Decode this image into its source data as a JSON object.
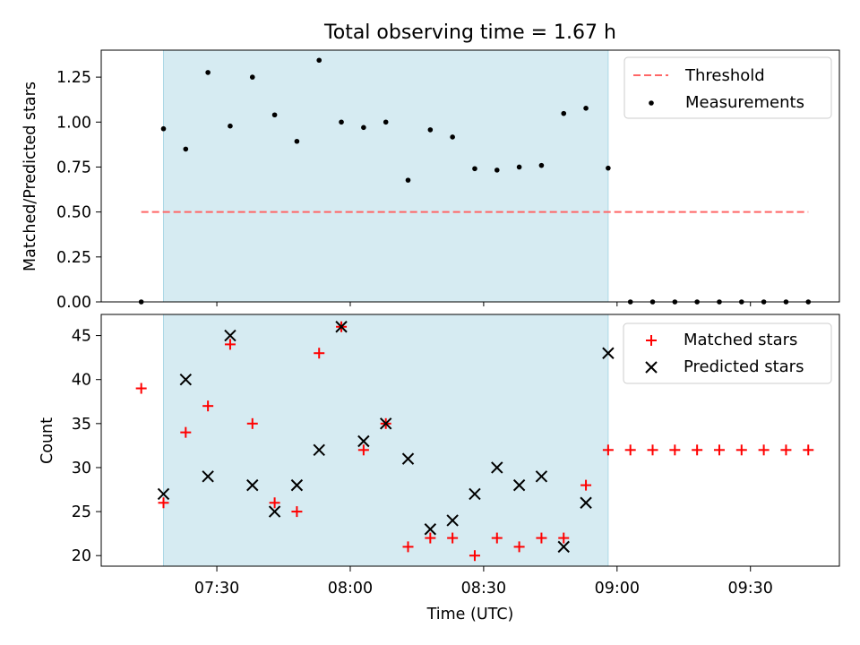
{
  "chart_data": {
    "title": "Total observing time = 1.67 h",
    "xlabel": "Time (UTC)",
    "xlim": [
      "07:04",
      "09:50"
    ],
    "x_ticks": [
      "07:30",
      "08:00",
      "08:30",
      "09:00",
      "09:30"
    ],
    "shaded_interval": [
      "07:18",
      "08:58"
    ],
    "shaded_color": "#add8e6",
    "top": {
      "type": "scatter",
      "ylabel": "Matched/Predicted stars",
      "ylim": [
        0,
        1.4
      ],
      "y_ticks": [
        "0.00",
        "0.25",
        "0.50",
        "0.75",
        "1.00",
        "1.25"
      ],
      "legend_position": "top-right",
      "threshold": {
        "name": "Threshold",
        "value": 0.5,
        "x_range": [
          "07:13",
          "09:43"
        ],
        "color": "#ff6666",
        "style": "dashed"
      },
      "series": [
        {
          "name": "Measurements",
          "color": "#000000",
          "marker": "dot",
          "x": [
            "07:13",
            "07:18",
            "07:23",
            "07:28",
            "07:33",
            "07:38",
            "07:43",
            "07:48",
            "07:53",
            "07:58",
            "08:03",
            "08:08",
            "08:13",
            "08:18",
            "08:23",
            "08:28",
            "08:33",
            "08:38",
            "08:43",
            "08:48",
            "08:53",
            "08:58",
            "09:03",
            "09:08",
            "09:13",
            "09:18",
            "09:23",
            "09:28",
            "09:33",
            "09:38",
            "09:43"
          ],
          "y": [
            0.0,
            0.963,
            0.85,
            1.276,
            0.978,
            1.25,
            1.04,
            0.893,
            1.344,
            1.0,
            0.97,
            1.0,
            0.677,
            0.957,
            0.917,
            0.741,
            0.733,
            0.75,
            0.759,
            1.048,
            1.077,
            0.744,
            0.0,
            0.0,
            0.0,
            0.0,
            0.0,
            0.0,
            0.0,
            0.0,
            0.0
          ]
        }
      ]
    },
    "bottom": {
      "type": "scatter",
      "ylabel": "Count",
      "ylim": [
        18.8,
        47.4
      ],
      "y_ticks": [
        "20",
        "25",
        "30",
        "35",
        "40",
        "45"
      ],
      "legend_position": "top-right",
      "series": [
        {
          "name": "Matched stars",
          "color": "#ff0000",
          "marker": "plus",
          "x": [
            "07:13",
            "07:18",
            "07:23",
            "07:28",
            "07:33",
            "07:38",
            "07:43",
            "07:48",
            "07:53",
            "07:58",
            "08:03",
            "08:08",
            "08:13",
            "08:18",
            "08:23",
            "08:28",
            "08:33",
            "08:38",
            "08:43",
            "08:48",
            "08:53",
            "08:58",
            "09:03",
            "09:08",
            "09:13",
            "09:18",
            "09:23",
            "09:28",
            "09:33",
            "09:38",
            "09:43"
          ],
          "y": [
            39,
            26,
            34,
            37,
            44,
            35,
            26,
            25,
            43,
            46,
            32,
            35,
            21,
            22,
            22,
            20,
            22,
            21,
            22,
            22,
            28,
            32,
            32,
            32,
            32,
            32,
            32,
            32,
            32,
            32,
            32
          ]
        },
        {
          "name": "Predicted stars",
          "color": "#000000",
          "marker": "x",
          "x": [
            "07:18",
            "07:23",
            "07:28",
            "07:33",
            "07:38",
            "07:43",
            "07:48",
            "07:53",
            "07:58",
            "08:03",
            "08:08",
            "08:13",
            "08:18",
            "08:23",
            "08:28",
            "08:33",
            "08:38",
            "08:43",
            "08:48",
            "08:53",
            "08:58"
          ],
          "y": [
            27,
            40,
            29,
            45,
            28,
            25,
            28,
            32,
            46,
            33,
            35,
            31,
            23,
            24,
            27,
            30,
            28,
            29,
            21,
            26,
            43
          ]
        }
      ]
    }
  }
}
